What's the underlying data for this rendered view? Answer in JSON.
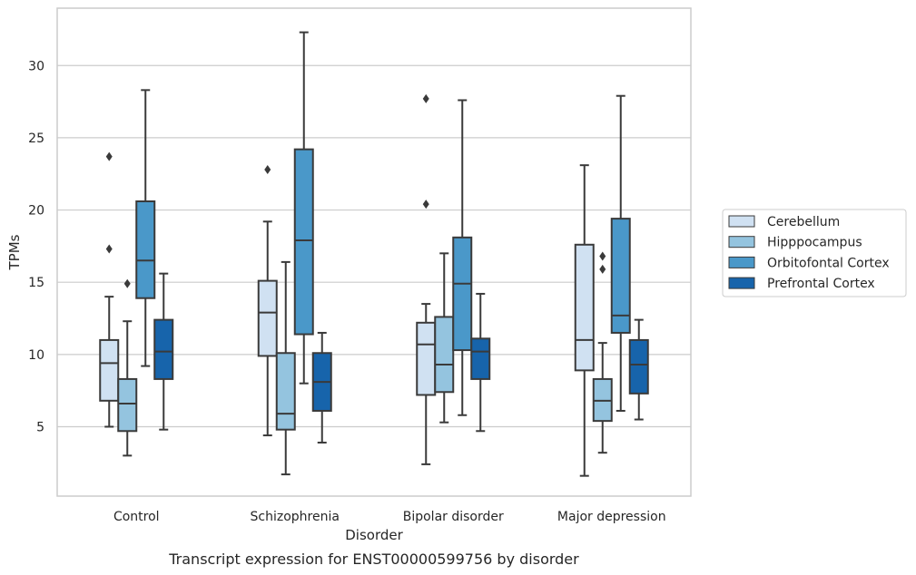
{
  "chart_data": {
    "type": "box",
    "caption": "Transcript expression for ENST00000599756 by disorder",
    "xlabel": "Disorder",
    "ylabel": "TPMs",
    "ylim": [
      0,
      34
    ],
    "yticks": [
      5,
      10,
      15,
      20,
      25,
      30
    ],
    "grid": "horizontal",
    "legend_position": "right",
    "categories": [
      "Control",
      "Schizophrenia",
      "Bipolar disorder",
      "Major depression"
    ],
    "series": [
      {
        "name": "Cerebellum",
        "color": "#d0e1f2",
        "boxes": [
          {
            "whisker_low": 5.0,
            "q1": 6.8,
            "median": 9.4,
            "q3": 11.0,
            "whisker_high": 14.0,
            "outliers": [
              17.3,
              23.7
            ]
          },
          {
            "whisker_low": 4.4,
            "q1": 9.9,
            "median": 12.9,
            "q3": 15.1,
            "whisker_high": 19.2,
            "outliers": [
              22.8
            ]
          },
          {
            "whisker_low": 2.4,
            "q1": 7.2,
            "median": 10.7,
            "q3": 12.2,
            "whisker_high": 13.5,
            "outliers": [
              20.4,
              27.7
            ]
          },
          {
            "whisker_low": 1.6,
            "q1": 8.9,
            "median": 11.0,
            "q3": 17.6,
            "whisker_high": 23.1,
            "outliers": []
          }
        ]
      },
      {
        "name": "Hipppocampus",
        "color": "#94c4df",
        "boxes": [
          {
            "whisker_low": 3.0,
            "q1": 4.7,
            "median": 6.6,
            "q3": 8.3,
            "whisker_high": 12.3,
            "outliers": [
              14.9
            ]
          },
          {
            "whisker_low": 1.7,
            "q1": 4.8,
            "median": 5.9,
            "q3": 10.1,
            "whisker_high": 16.4,
            "outliers": []
          },
          {
            "whisker_low": 5.3,
            "q1": 7.4,
            "median": 9.3,
            "q3": 12.6,
            "whisker_high": 17.0,
            "outliers": []
          },
          {
            "whisker_low": 3.2,
            "q1": 5.4,
            "median": 6.8,
            "q3": 8.3,
            "whisker_high": 10.8,
            "outliers": [
              15.9,
              16.8
            ]
          }
        ]
      },
      {
        "name": "Orbitofontal Cortex",
        "color": "#4a98c9",
        "boxes": [
          {
            "whisker_low": 9.2,
            "q1": 13.9,
            "median": 16.5,
            "q3": 20.6,
            "whisker_high": 28.3,
            "outliers": []
          },
          {
            "whisker_low": 8.0,
            "q1": 11.4,
            "median": 17.9,
            "q3": 24.2,
            "whisker_high": 32.3,
            "outliers": []
          },
          {
            "whisker_low": 5.8,
            "q1": 10.3,
            "median": 14.9,
            "q3": 18.1,
            "whisker_high": 27.6,
            "outliers": []
          },
          {
            "whisker_low": 6.1,
            "q1": 11.5,
            "median": 12.7,
            "q3": 19.4,
            "whisker_high": 27.9,
            "outliers": []
          }
        ]
      },
      {
        "name": "Prefrontal Cortex",
        "color": "#1764ab",
        "boxes": [
          {
            "whisker_low": 4.8,
            "q1": 8.3,
            "median": 10.2,
            "q3": 12.4,
            "whisker_high": 15.6,
            "outliers": []
          },
          {
            "whisker_low": 3.9,
            "q1": 6.1,
            "median": 8.1,
            "q3": 10.1,
            "whisker_high": 11.5,
            "outliers": []
          },
          {
            "whisker_low": 4.7,
            "q1": 8.3,
            "median": 10.2,
            "q3": 11.1,
            "whisker_high": 14.2,
            "outliers": []
          },
          {
            "whisker_low": 5.5,
            "q1": 7.3,
            "median": 9.3,
            "q3": 11.0,
            "whisker_high": 12.4,
            "outliers": []
          }
        ]
      }
    ]
  }
}
